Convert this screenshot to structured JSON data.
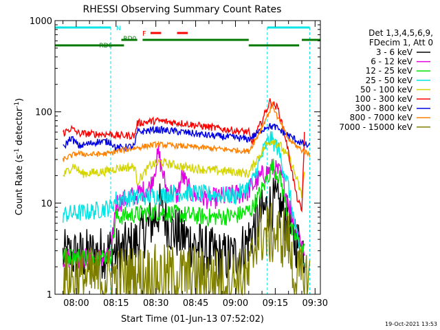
{
  "chart_data": {
    "type": "line",
    "title": "RHESSI Observing Summary Count Rates",
    "xlabel": "Start Time (01-Jun-13 07:52:02)",
    "ylabel": "Count Rate (s⁻¹ detector⁻¹)",
    "ylabel_main": "Count Rate (s",
    "ylabel_sup1": "-1",
    "ylabel_mid": " detector",
    "ylabel_sup2": "-1",
    "ylabel_end": ")",
    "y_scale": "log",
    "ylim": [
      1,
      1000
    ],
    "xlim": [
      "07:52",
      "09:32"
    ],
    "x_ticks": [
      "08:00",
      "08:15",
      "08:30",
      "08:45",
      "09:00",
      "09:15",
      "09:30"
    ],
    "y_ticks": [
      "1",
      "10",
      "100",
      "1000"
    ],
    "grid": false,
    "legend_header": [
      "Det 1,3,4,5,6,9,",
      "FDecim 1, Att 0"
    ],
    "legend_position": "right",
    "footer": "19-Oct-2021 13:53",
    "flags": {
      "N_label": "N",
      "F_label": "F",
      "RD0_label": "RD0",
      "RD6_label": "RD6",
      "night": [
        [
          "07:52",
          "08:13"
        ],
        [
          "09:12",
          "09:28"
        ]
      ],
      "RD0": [
        [
          "08:17",
          "08:23"
        ],
        [
          "08:25",
          "09:05"
        ],
        [
          "09:25",
          "09:32"
        ]
      ],
      "RD6": [
        [
          "07:52",
          "08:18"
        ],
        [
          "09:05",
          "09:24"
        ]
      ],
      "F": [
        [
          "08:28",
          "08:32"
        ],
        [
          "08:38",
          "08:42"
        ]
      ]
    },
    "series": [
      {
        "name": "3 - 6 keV",
        "color": "#000000",
        "points": [
          [
            "07:55",
            2.6
          ],
          [
            "08:05",
            2.7
          ],
          [
            "08:13",
            3.0
          ],
          [
            "08:15",
            2.8
          ],
          [
            "08:22",
            3.5
          ],
          [
            "08:28",
            6.0
          ],
          [
            "08:32",
            9.0
          ],
          [
            "08:36",
            5.0
          ],
          [
            "08:42",
            4.0
          ],
          [
            "08:48",
            3.0
          ],
          [
            "08:55",
            2.5
          ],
          [
            "09:00",
            2.6
          ],
          [
            "09:04",
            3.5
          ],
          [
            "09:08",
            6.0
          ],
          [
            "09:12",
            9.0
          ],
          [
            "09:15",
            10.0
          ],
          [
            "09:18",
            8.0
          ],
          [
            "09:22",
            4.0
          ],
          [
            "09:26",
            3.0
          ]
        ]
      },
      {
        "name": "6 - 12 keV",
        "color": "#e400e4",
        "points": [
          [
            "07:55",
            2.5
          ],
          [
            "08:05",
            2.5
          ],
          [
            "08:13",
            2.5
          ],
          [
            "08:15",
            10.0
          ],
          [
            "08:22",
            12.0
          ],
          [
            "08:28",
            15.0
          ],
          [
            "08:31",
            35.0
          ],
          [
            "08:34",
            14.0
          ],
          [
            "08:38",
            12.0
          ],
          [
            "08:40",
            20.0
          ],
          [
            "08:43",
            13.0
          ],
          [
            "08:50",
            11.0
          ],
          [
            "08:58",
            12.0
          ],
          [
            "09:04",
            13.0
          ],
          [
            "09:10",
            20.0
          ],
          [
            "09:14",
            24.0
          ],
          [
            "09:17",
            21.0
          ],
          [
            "09:21",
            8.0
          ],
          [
            "09:26",
            3.0
          ]
        ]
      },
      {
        "name": "12 - 25 keV",
        "color": "#00e400",
        "points": [
          [
            "07:55",
            2.6
          ],
          [
            "08:05",
            2.6
          ],
          [
            "08:13",
            2.6
          ],
          [
            "08:15",
            7.0
          ],
          [
            "08:22",
            7.5
          ],
          [
            "08:30",
            8.0
          ],
          [
            "08:40",
            7.5
          ],
          [
            "08:50",
            7.0
          ],
          [
            "09:00",
            7.2
          ],
          [
            "09:06",
            8.5
          ],
          [
            "09:11",
            16.0
          ],
          [
            "09:14",
            26.0
          ],
          [
            "09:17",
            18.0
          ],
          [
            "09:21",
            5.0
          ],
          [
            "09:26",
            3.0
          ]
        ]
      },
      {
        "name": "25 - 50 keV",
        "color": "#00e4e4",
        "points": [
          [
            "07:55",
            7.5
          ],
          [
            "08:05",
            8.0
          ],
          [
            "08:13",
            9.0
          ],
          [
            "08:15",
            11.0
          ],
          [
            "08:22",
            11.5
          ],
          [
            "08:30",
            12.0
          ],
          [
            "08:40",
            13.0
          ],
          [
            "08:50",
            12.5
          ],
          [
            "09:00",
            12.0
          ],
          [
            "09:06",
            16.0
          ],
          [
            "09:11",
            40.0
          ],
          [
            "09:13",
            52.0
          ],
          [
            "09:16",
            40.0
          ],
          [
            "09:20",
            15.0
          ],
          [
            "09:24",
            3.0
          ],
          [
            "09:26",
            2.0
          ]
        ]
      },
      {
        "name": "50 - 100 keV",
        "color": "#d4d400",
        "points": [
          [
            "07:55",
            20.0
          ],
          [
            "07:59",
            26.0
          ],
          [
            "08:02",
            21.0
          ],
          [
            "08:10",
            22.0
          ],
          [
            "08:13",
            23.0
          ],
          [
            "08:15",
            24.0
          ],
          [
            "08:22",
            25.0
          ],
          [
            "08:23",
            17.0
          ],
          [
            "08:28",
            26.0
          ],
          [
            "08:32",
            28.0
          ],
          [
            "08:40",
            25.0
          ],
          [
            "08:50",
            23.0
          ],
          [
            "09:00",
            22.0
          ],
          [
            "09:05",
            21.0
          ],
          [
            "09:08",
            30.0
          ],
          [
            "09:12",
            45.0
          ],
          [
            "09:14",
            50.0
          ],
          [
            "09:17",
            42.0
          ],
          [
            "09:21",
            28.0
          ],
          [
            "09:25",
            12.0
          ],
          [
            "09:26",
            22.0
          ]
        ]
      },
      {
        "name": "100 - 300 keV",
        "color": "#ff0000",
        "points": [
          [
            "07:55",
            58.0
          ],
          [
            "07:58",
            66.0
          ],
          [
            "08:01",
            58.0
          ],
          [
            "08:08",
            57.0
          ],
          [
            "08:13",
            57.0
          ],
          [
            "08:15",
            55.0
          ],
          [
            "08:22",
            55.0
          ],
          [
            "08:23",
            75.0
          ],
          [
            "08:30",
            80.0
          ],
          [
            "08:40",
            75.0
          ],
          [
            "08:50",
            68.0
          ],
          [
            "09:00",
            62.0
          ],
          [
            "09:05",
            60.0
          ],
          [
            "09:06",
            45.0
          ],
          [
            "09:10",
            80.0
          ],
          [
            "09:13",
            130.0
          ],
          [
            "09:16",
            110.0
          ],
          [
            "09:19",
            50.0
          ],
          [
            "09:23",
            12.0
          ],
          [
            "09:25",
            8.0
          ],
          [
            "09:26",
            58.0
          ]
        ]
      },
      {
        "name": "300 - 800 keV",
        "color": "#0000e4",
        "points": [
          [
            "07:55",
            40.0
          ],
          [
            "07:58",
            52.0
          ],
          [
            "08:01",
            42.0
          ],
          [
            "08:08",
            47.0
          ],
          [
            "08:13",
            47.0
          ],
          [
            "08:15",
            40.0
          ],
          [
            "08:22",
            42.0
          ],
          [
            "08:23",
            60.0
          ],
          [
            "08:30",
            64.0
          ],
          [
            "08:40",
            60.0
          ],
          [
            "08:50",
            55.0
          ],
          [
            "09:00",
            52.0
          ],
          [
            "09:05",
            50.0
          ],
          [
            "09:08",
            58.0
          ],
          [
            "09:12",
            70.0
          ],
          [
            "09:15",
            68.0
          ],
          [
            "09:20",
            55.0
          ],
          [
            "09:25",
            45.0
          ],
          [
            "09:28",
            42.0
          ]
        ]
      },
      {
        "name": "800 - 7000 keV",
        "color": "#ff8000",
        "points": [
          [
            "07:55",
            30.0
          ],
          [
            "08:00",
            35.0
          ],
          [
            "08:05",
            34.0
          ],
          [
            "08:13",
            35.0
          ],
          [
            "08:15",
            37.0
          ],
          [
            "08:22",
            40.0
          ],
          [
            "08:30",
            44.0
          ],
          [
            "08:40",
            42.0
          ],
          [
            "08:50",
            40.0
          ],
          [
            "09:00",
            38.0
          ],
          [
            "09:05",
            37.0
          ],
          [
            "09:08",
            52.0
          ],
          [
            "09:12",
            90.0
          ],
          [
            "09:14",
            120.0
          ],
          [
            "09:16",
            85.0
          ],
          [
            "09:20",
            50.0
          ],
          [
            "09:25",
            38.0
          ],
          [
            "09:28",
            34.0
          ]
        ]
      },
      {
        "name": "7000 - 15000 keV",
        "color": "#808000",
        "points": [
          [
            "07:55",
            1.5
          ],
          [
            "08:10",
            1.5
          ],
          [
            "08:25",
            1.6
          ],
          [
            "08:40",
            1.6
          ],
          [
            "08:55",
            1.5
          ],
          [
            "09:05",
            1.5
          ],
          [
            "09:08",
            4.5
          ],
          [
            "09:15",
            4.5
          ],
          [
            "09:20",
            4.0
          ],
          [
            "09:22",
            1.5
          ],
          [
            "09:28",
            1.5
          ]
        ]
      }
    ]
  }
}
